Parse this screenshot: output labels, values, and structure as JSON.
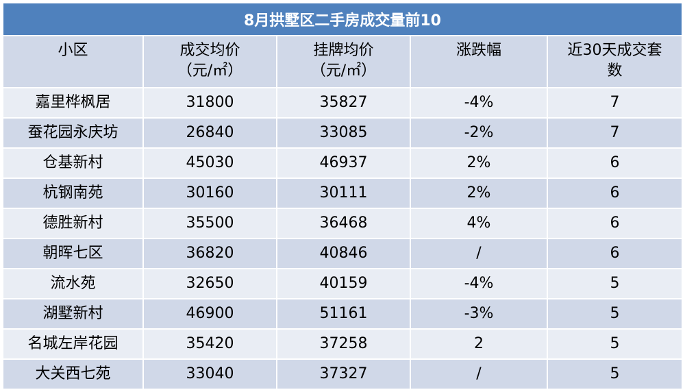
{
  "table": {
    "title": "8月拱墅区二手房成交量前10",
    "header": [
      "小区",
      "成交均价\n（元/㎡）",
      "挂牌均价\n（元/㎡）",
      "涨跌幅",
      "近30天成交套\n数"
    ],
    "rows": [
      [
        "嘉里桦枫居",
        31800,
        35827,
        "-4%",
        7
      ],
      [
        "蚕花园永庆坊",
        26840,
        33085,
        "-2%",
        7
      ],
      [
        "仓基新村",
        45030,
        46937,
        "2%",
        6
      ],
      [
        "杭钢南苑",
        30160,
        30111,
        "2%",
        6
      ],
      [
        "德胜新村",
        35500,
        36468,
        "4%",
        6
      ],
      [
        "朝晖七区",
        36820,
        40846,
        "/",
        6
      ],
      [
        "流水苑",
        32650,
        40159,
        "-4%",
        5
      ],
      [
        "湖墅新村",
        46900,
        51161,
        "-3%",
        5
      ],
      [
        "名城左岸花园",
        35420,
        37258,
        "2",
        5
      ],
      [
        "大关西七苑",
        33040,
        37327,
        "/",
        5
      ]
    ]
  }
}
